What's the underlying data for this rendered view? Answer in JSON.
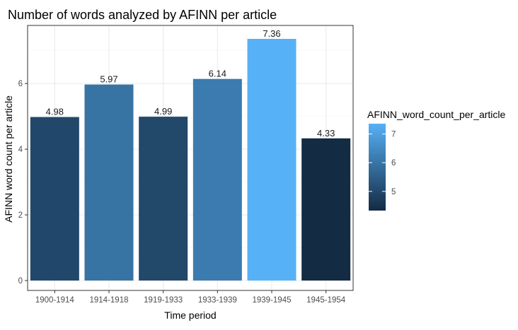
{
  "chart_data": {
    "type": "bar",
    "title": "Number of words analyzed by AFINN per article",
    "xlabel": "Time period",
    "ylabel": "AFINN word count per article",
    "categories": [
      "1900-1914",
      "1914-1918",
      "1919-1933",
      "1933-1939",
      "1939-1945",
      "1945-1954"
    ],
    "values": [
      4.98,
      5.97,
      4.99,
      6.14,
      7.36,
      4.33
    ],
    "data_labels": [
      "4.98",
      "5.97",
      "4.99",
      "6.14",
      "7.36",
      "4.33"
    ],
    "ylim": [
      0,
      7.72
    ],
    "yticks": [
      0,
      2,
      4,
      6
    ],
    "grid": true,
    "legend": {
      "title": "AFINN_word_count_per_article",
      "placement": "right",
      "ticks": [
        5,
        6,
        7
      ],
      "range": [
        4.33,
        7.36
      ],
      "colors": {
        "low": "#132b43",
        "high": "#56b1f7"
      }
    },
    "colors": {
      "panel_border": "#333333",
      "grid_major": "#ebebeb",
      "grid_minor": "#f5f5f5",
      "axis_text": "#4d4d4d",
      "text": "#1a1a1a"
    }
  }
}
